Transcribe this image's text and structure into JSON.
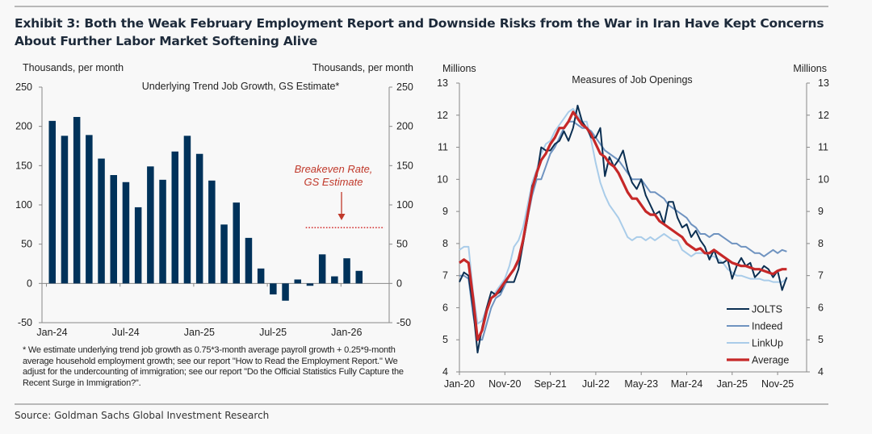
{
  "title": "Exhibit 3: Both the Weak February Employment Report and Downside Risks from the War in Iran Have Kept Concerns About Further Labor Market Softening Alive",
  "source": "Source: Goldman Sachs Global Investment Research",
  "footnote": "* We estimate underlying trend job growth as 0.75*3-month average payroll growth + 0.25*9-month average household employment growth; see our report \"How to Read the Employment Report.\" We adjust for the undercounting of immigration; see our report \"Do the Official Statistics Fully Capture the Recent Surge in Immigration?\".",
  "colors": {
    "bar": "#00325a",
    "breakeven": "#d43a3a",
    "annotation": "#c0392b",
    "jolts": "#0b2f52",
    "indeed": "#6f93c0",
    "linkup": "#a9cce9",
    "average": "#c62828"
  },
  "chart_data": [
    {
      "type": "bar",
      "title": "Underlying Trend Job Growth, GS Estimate*",
      "ylabel_left": "Thousands, per month",
      "ylabel_right": "Thousands, per month",
      "ylim": [
        -50,
        250
      ],
      "yticks": [
        -50,
        0,
        50,
        100,
        150,
        200,
        250
      ],
      "xtick_labels": [
        "Jan-24",
        "Jul-24",
        "Jan-25",
        "Jul-25",
        "Jan-26"
      ],
      "categories": [
        "Jan-24",
        "Feb-24",
        "Mar-24",
        "Apr-24",
        "May-24",
        "Jun-24",
        "Jul-24",
        "Aug-24",
        "Sep-24",
        "Oct-24",
        "Nov-24",
        "Dec-24",
        "Jan-25",
        "Feb-25",
        "Mar-25",
        "Apr-25",
        "May-25",
        "Jun-25",
        "Jul-25",
        "Aug-25",
        "Sep-25",
        "Oct-25",
        "Nov-25",
        "Dec-25",
        "Jan-26",
        "Feb-26"
      ],
      "values": [
        207,
        188,
        212,
        189,
        159,
        138,
        129,
        97,
        149,
        132,
        168,
        188,
        165,
        131,
        75,
        103,
        58,
        19,
        -14,
        -22,
        5,
        -3,
        37,
        9,
        32,
        16
      ],
      "breakeven": {
        "value": 71,
        "from": "Oct-25",
        "label_line1": "Breakeven Rate,",
        "label_line2": "GS Estimate"
      },
      "grid": false
    },
    {
      "type": "line",
      "title": "Measures of Job Openings",
      "ylabel_left": "Millions",
      "ylabel_right": "Millions",
      "ylim": [
        4,
        13
      ],
      "yticks": [
        4,
        5,
        6,
        7,
        8,
        9,
        10,
        11,
        12,
        13
      ],
      "xtick_labels": [
        "Jan-20",
        "Nov-20",
        "Sep-21",
        "Jul-22",
        "May-23",
        "Mar-24",
        "Jan-25",
        "Nov-25"
      ],
      "x_start": "Jan-20",
      "legend": [
        "JOLTS",
        "Indeed",
        "LinkUp",
        "Average"
      ],
      "legend_position": "bottom-right",
      "grid": false,
      "series": [
        {
          "name": "JOLTS",
          "values": [
            6.8,
            7.1,
            7.0,
            6.0,
            4.6,
            5.4,
            6.0,
            6.5,
            6.4,
            6.5,
            6.8,
            6.8,
            6.8,
            7.2,
            8.0,
            8.8,
            9.8,
            10.1,
            11.0,
            10.9,
            10.9,
            11.1,
            11.2,
            11.5,
            11.2,
            11.6,
            12.3,
            11.8,
            11.6,
            11.3,
            11.3,
            11.6,
            10.1,
            10.7,
            10.4,
            10.6,
            10.9,
            10.3,
            9.9,
            9.7,
            10.0,
            9.5,
            9.2,
            8.9,
            9.0,
            8.6,
            9.3,
            9.3,
            8.8,
            8.5,
            8.6,
            8.2,
            8.4,
            8.1,
            7.9,
            7.5,
            7.8,
            7.4,
            7.4,
            7.5,
            6.9,
            7.3,
            7.55,
            7.3,
            7.4,
            6.95,
            7.1,
            7.3,
            7.2,
            6.95,
            7.15,
            6.55,
            6.95
          ]
        },
        {
          "name": "Indeed",
          "values": [
            7.0,
            7.0,
            6.9,
            5.8,
            5.0,
            5.0,
            5.5,
            6.0,
            6.3,
            6.4,
            6.7,
            7.0,
            7.2,
            7.4,
            8.0,
            8.8,
            9.5,
            10.0,
            10.0,
            10.4,
            10.8,
            11.0,
            11.3,
            11.6,
            11.8,
            11.8,
            11.7,
            11.6,
            11.6,
            11.5,
            11.3,
            11.1,
            10.9,
            10.8,
            10.7,
            10.6,
            10.4,
            10.2,
            10.0,
            10.0,
            10.0,
            9.8,
            9.6,
            9.6,
            9.5,
            9.4,
            9.2,
            9.1,
            9.0,
            8.9,
            8.8,
            8.6,
            8.5,
            8.3,
            8.3,
            8.2,
            8.3,
            8.3,
            8.2,
            8.1,
            8.0,
            8.0,
            7.9,
            7.9,
            7.8,
            7.7,
            7.7,
            7.6,
            7.7,
            7.8,
            7.7,
            7.8,
            7.75
          ]
        },
        {
          "name": "LinkUp",
          "values": [
            7.8,
            7.9,
            7.9,
            6.5,
            5.5,
            5.6,
            6.0,
            6.3,
            6.5,
            6.7,
            6.9,
            7.3,
            7.9,
            8.1,
            8.5,
            9.2,
            9.9,
            10.3,
            10.8,
            11.1,
            11.2,
            11.5,
            11.7,
            11.9,
            12.1,
            12.2,
            12.0,
            11.8,
            11.8,
            11.2,
            10.5,
            9.9,
            9.5,
            9.2,
            9.0,
            8.8,
            8.5,
            8.2,
            8.1,
            8.2,
            8.2,
            8.1,
            8.2,
            8.1,
            8.2,
            8.3,
            8.2,
            8.1,
            8.1,
            7.8,
            7.7,
            7.6,
            7.7,
            7.7,
            7.7,
            7.6,
            7.6,
            7.5,
            7.4,
            7.2,
            7.1,
            7.0,
            7.0,
            6.95,
            6.9,
            6.9,
            6.9,
            6.85,
            6.85,
            6.8,
            6.8,
            6.8,
            6.9
          ]
        },
        {
          "name": "Average",
          "values": [
            7.4,
            7.5,
            7.4,
            6.3,
            5.0,
            5.3,
            5.9,
            6.3,
            6.4,
            6.6,
            6.8,
            7.0,
            7.2,
            7.5,
            8.1,
            8.9,
            9.7,
            10.2,
            10.6,
            10.8,
            11.1,
            11.3,
            11.6,
            11.6,
            11.8,
            12.1,
            11.9,
            11.7,
            11.6,
            11.4,
            11.1,
            10.8,
            10.7,
            10.5,
            10.4,
            10.2,
            9.9,
            9.6,
            9.4,
            9.4,
            9.2,
            9.0,
            8.9,
            8.9,
            8.7,
            8.6,
            8.5,
            8.4,
            8.3,
            8.2,
            8.0,
            7.9,
            7.8,
            7.85,
            7.7,
            7.7,
            7.8,
            7.7,
            7.6,
            7.5,
            7.4,
            7.35,
            7.3,
            7.3,
            7.25,
            7.2,
            7.2,
            7.15,
            7.1,
            7.05,
            7.15,
            7.2,
            7.2
          ]
        }
      ]
    }
  ]
}
